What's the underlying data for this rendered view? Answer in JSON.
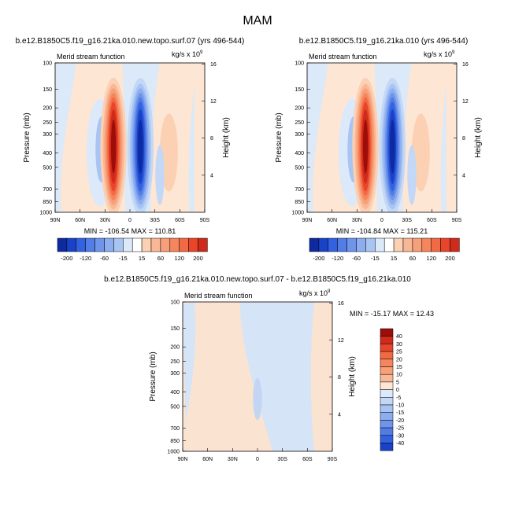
{
  "figure_title": "MAM",
  "colors": {
    "pos": [
      "#fde6d4",
      "#fbd0b3",
      "#f9b895",
      "#f79f78",
      "#f5855d",
      "#f26a44",
      "#e8452a",
      "#cf2a1b",
      "#9d0d0a"
    ],
    "neg": [
      "#dbe9fa",
      "#c3d8f7",
      "#a8c4f3",
      "#8cadef",
      "#6f95ea",
      "#527ce6",
      "#3262df",
      "#1a42c8",
      "#0d2aa0"
    ],
    "bg": "#dce9f8",
    "diff_pos": "#fbe3d2",
    "diff_neg": "#d5e4f7"
  },
  "chart_data": [
    {
      "type": "contour",
      "title": "b.e12.B1850C5.f19_g16.21ka.010.new.topo.surf.07 (yrs 496-544)",
      "subtitle_left": "Merid stream function",
      "units": "kg/s x 10",
      "units_exp": "9",
      "ylabel": "Pressure (mb)",
      "ylabel_right": "Height (km)",
      "x_ticks": [
        "90N",
        "60N",
        "30N",
        "0",
        "30S",
        "60S",
        "90S"
      ],
      "p_ticks": [
        "100",
        "150",
        "200",
        "250",
        "300",
        "400",
        "500",
        "700",
        "850",
        "1000"
      ],
      "h_ticks": [
        "16",
        "12",
        "8",
        "4"
      ],
      "stats": "MIN = -106.54   MAX = 110.81",
      "min": -106.54,
      "max": 110.81,
      "colorbar_labels": [
        "-200",
        "-120",
        "-60",
        "-15",
        "15",
        "60",
        "120",
        "200"
      ]
    },
    {
      "type": "contour",
      "title": "b.e12.B1850C5.f19_g16.21ka.010 (yrs 496-544)",
      "subtitle_left": "Merid stream function",
      "units": "kg/s x 10",
      "units_exp": "9",
      "ylabel": "Pressure (mb)",
      "ylabel_right": "Height (km)",
      "x_ticks": [
        "90N",
        "60N",
        "30N",
        "0",
        "30S",
        "60S",
        "90S"
      ],
      "p_ticks": [
        "100",
        "150",
        "200",
        "250",
        "300",
        "400",
        "500",
        "700",
        "850",
        "1000"
      ],
      "h_ticks": [
        "16",
        "12",
        "8",
        "4"
      ],
      "stats": "MIN = -104.84   MAX = 115.21",
      "min": -104.84,
      "max": 115.21,
      "colorbar_labels": [
        "-200",
        "-120",
        "-60",
        "-15",
        "15",
        "60",
        "120",
        "200"
      ]
    },
    {
      "type": "contour",
      "title": "b.e12.B1850C5.f19_g16.21ka.010.new.topo.surf.07 - b.e12.B1850C5.f19_g16.21ka.010",
      "subtitle_left": "Merid stream function",
      "units": "kg/s x 10",
      "units_exp": "9",
      "ylabel": "Pressure (mb)",
      "ylabel_right": "Height (km)",
      "x_ticks": [
        "90N",
        "60N",
        "30N",
        "0",
        "30S",
        "60S",
        "90S"
      ],
      "p_ticks": [
        "100",
        "150",
        "200",
        "250",
        "300",
        "400",
        "500",
        "700",
        "850",
        "1000"
      ],
      "h_ticks": [
        "16",
        "12",
        "8",
        "4"
      ],
      "stats": "MIN = -15.17   MAX =  12.43",
      "min": -15.17,
      "max": 12.43,
      "colorbar_labels": [
        "40",
        "30",
        "25",
        "20",
        "15",
        "10",
        "5",
        "0",
        "-5",
        "-10",
        "-15",
        "-20",
        "-25",
        "-30",
        "-40"
      ]
    }
  ]
}
